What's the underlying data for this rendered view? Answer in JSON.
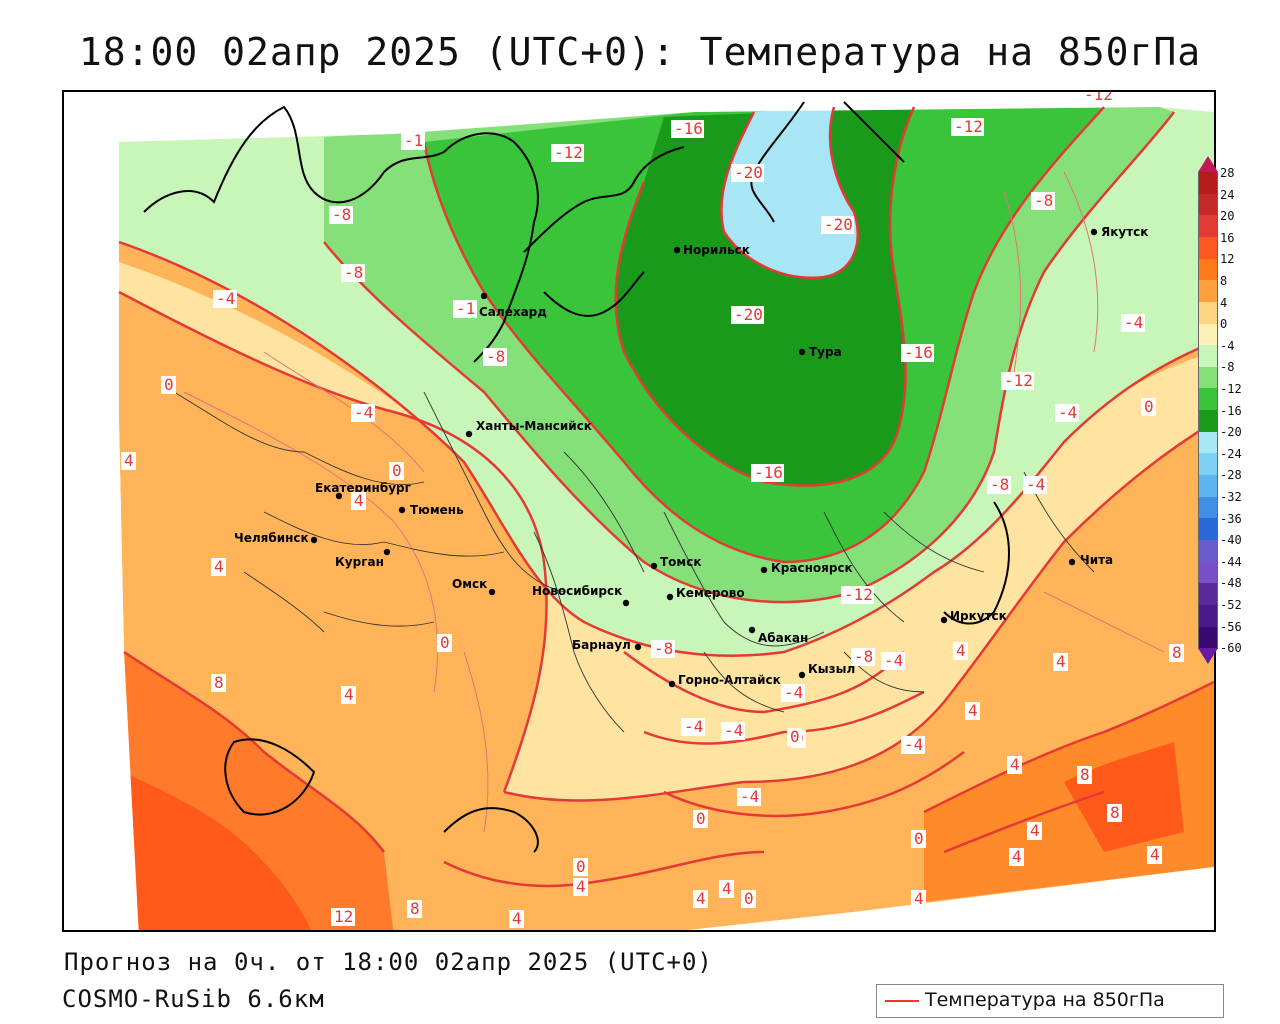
{
  "title": "18:00 02апр 2025 (UTC+0): Температура на 850гПа",
  "footer": {
    "forecast": "Прогноз на 0ч. от 18:00 02апр 2025 (UTC+0)",
    "model": "COSMO-RuSib 6.6км"
  },
  "legend": {
    "label": "Температура на 850гПа",
    "line_color": "#e53935"
  },
  "colorbar": {
    "ticks": [
      "28",
      "24",
      "20",
      "16",
      "12",
      "8",
      "4",
      "0",
      "-4",
      "-8",
      "-12",
      "-16",
      "-20",
      "-24",
      "-28",
      "-32",
      "-36",
      "-40",
      "-44",
      "-48",
      "-52",
      "-56",
      "-60"
    ],
    "colors": [
      "#c2185b",
      "#b71c1c",
      "#c62828",
      "#e53935",
      "#ff5722",
      "#ff7a1a",
      "#ffa040",
      "#ffd580",
      "#fff0b8",
      "#c8f5b8",
      "#86e07a",
      "#3ac43a",
      "#1a9a1a",
      "#a8e6f5",
      "#7fd0f5",
      "#5fb5f0",
      "#3f8fe6",
      "#2a6ad8",
      "#6a5acd",
      "#7b4fc9",
      "#5b2a9a",
      "#4a1a8a",
      "#3a0a70",
      "#6a1aa0"
    ]
  },
  "cities": [
    {
      "name": "Якутск"
    },
    {
      "name": "Норильск"
    },
    {
      "name": "Салехард"
    },
    {
      "name": "Тура"
    },
    {
      "name": "Ханты-Мансийск"
    },
    {
      "name": "Екатеринбург"
    },
    {
      "name": "Тюмень"
    },
    {
      "name": "Челябинск"
    },
    {
      "name": "Курган"
    },
    {
      "name": "Томск"
    },
    {
      "name": "Красноярск"
    },
    {
      "name": "Чита"
    },
    {
      "name": "Омск"
    },
    {
      "name": "Новосибирск"
    },
    {
      "name": "Кемерово"
    },
    {
      "name": "Абакан"
    },
    {
      "name": "Иркутск"
    },
    {
      "name": "Барнаул"
    },
    {
      "name": "Горно-Алтайск"
    },
    {
      "name": "Кызыл"
    }
  ],
  "contour_labels": [
    "-1",
    "-12",
    "-16",
    "-12",
    "-12",
    "-8",
    "-8",
    "-20",
    "-20",
    "-8",
    "-4",
    "-1",
    "-20",
    "-4",
    "-16",
    "-8",
    "-12",
    "0",
    "-4",
    "0",
    "-4",
    "-16",
    "4",
    "0",
    "-8",
    "-4",
    "4",
    "4",
    "-12",
    "-8",
    "-8",
    "-4",
    "4",
    "0",
    "8",
    "4",
    "4",
    "8",
    "-4",
    "-4",
    "-4",
    "0",
    "4",
    "-4",
    "-4",
    "0",
    "4",
    "8",
    "8",
    "4",
    "4",
    "0",
    "0",
    "0",
    "4",
    "4",
    "4",
    "0",
    "4",
    "12",
    "8",
    "4",
    "4"
  ],
  "colors": {
    "contour": "#e53935",
    "label_text": "#e53935",
    "coast": "#000000"
  }
}
